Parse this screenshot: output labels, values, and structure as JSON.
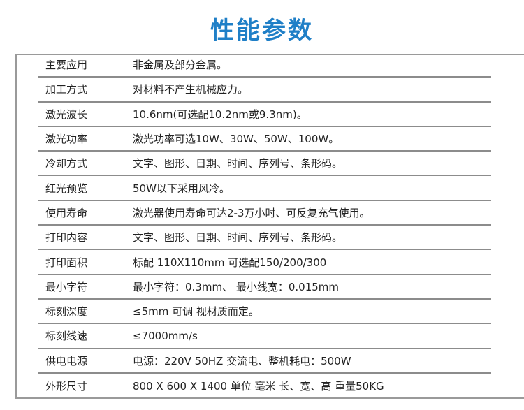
{
  "title": "性能参数",
  "rows": [
    {
      "label": "主要应用",
      "value": "非金属及部分金属。"
    },
    {
      "label": "加工方式",
      "value": "对材料不产生机械应力。"
    },
    {
      "label": "激光波长",
      "value": "10.6nm(可选配10.2nm或9.3nm)。"
    },
    {
      "label": "激光功率",
      "value": "激光功率可选10W、30W、50W、100W。"
    },
    {
      "label": "冷却方式",
      "value": "文字、图形、日期、时间、序列号、条形码。"
    },
    {
      "label": "红光预览",
      "value": "50W以下采用风冷。"
    },
    {
      "label": "使用寿命",
      "value": "激光器使用寿命可达2-3万小时、可反复充气使用。"
    },
    {
      "label": "打印内容",
      "value": "文字、图形、日期、时间、序列号、条形码。"
    },
    {
      "label": "打印面积",
      "value": "标配 110X110mm 可选配150/200/300"
    },
    {
      "label": "最小字符",
      "value": "最小字符：0.3mm、 最小线宽：0.015mm"
    },
    {
      "label": "标刻深度",
      "value": "≤5mm 可调 视材质而定。"
    },
    {
      "label": "标刻线速",
      "value": "≤7000mm/s"
    },
    {
      "label": "供电电源",
      "value": "电源：220V 50HZ 交流电、整机耗电：500W"
    },
    {
      "label": "外形尺寸",
      "value": "800 X 600 X 1400 单位 毫米 长、宽、高  重量50KG"
    }
  ]
}
